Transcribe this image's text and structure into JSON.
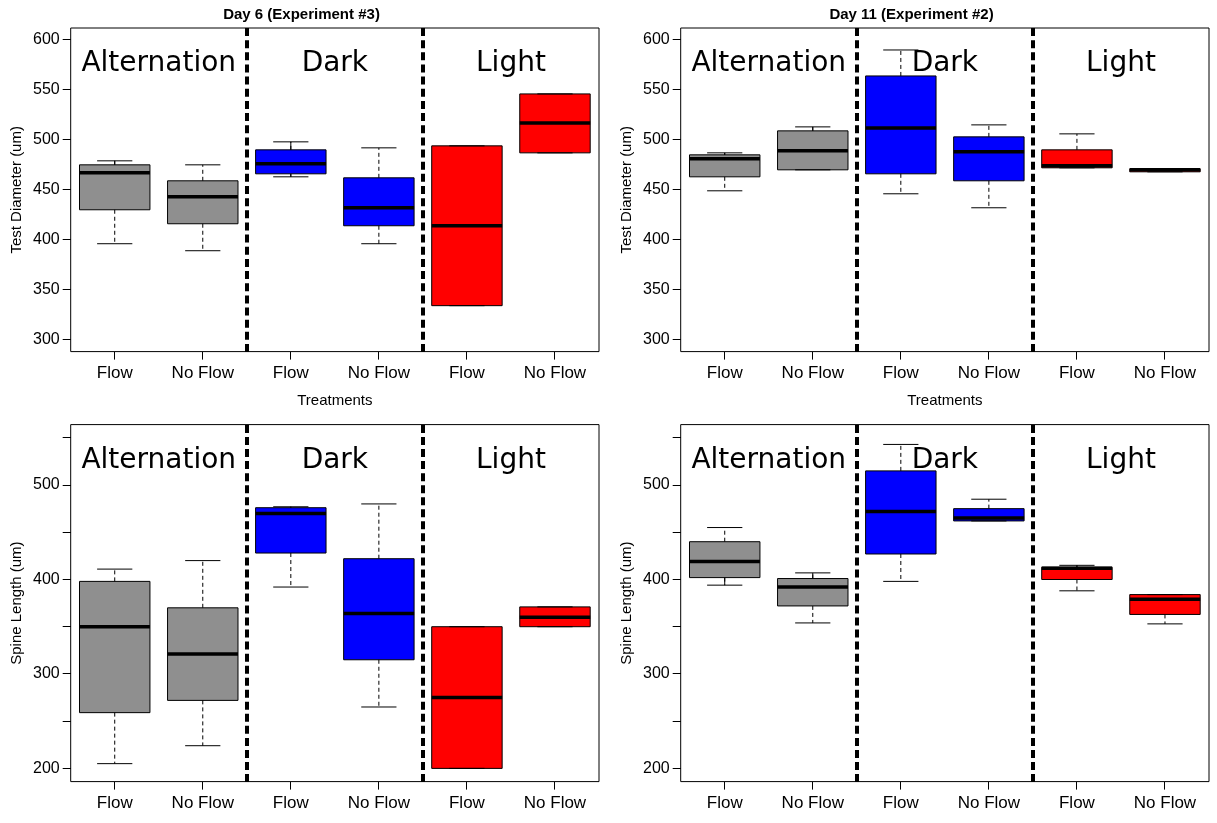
{
  "chart_data": [
    {
      "type": "box",
      "title": "Day 6 (Experiment #3)",
      "xlabel": "Treatments",
      "ylabel": "Test Diameter (um)",
      "categories": [
        "Flow",
        "No Flow",
        "Flow",
        "No Flow",
        "Flow",
        "No Flow"
      ],
      "colors": [
        "#8f8f8f",
        "#8f8f8f",
        "#0000ff",
        "#0000ff",
        "#ff0000",
        "#ff0000"
      ],
      "boxes": [
        {
          "low": 396,
          "q1": 430,
          "median": 467,
          "q3": 475,
          "high": 479
        },
        {
          "low": 389,
          "q1": 416,
          "median": 443,
          "q3": 459,
          "high": 475
        },
        {
          "low": 463,
          "q1": 466,
          "median": 476,
          "q3": 490,
          "high": 498
        },
        {
          "low": 396,
          "q1": 414,
          "median": 432,
          "q3": 462,
          "high": 492
        },
        {
          "low": 334,
          "q1": 334,
          "median": 414,
          "q3": 494,
          "high": 494
        },
        {
          "low": 487,
          "q1": 487,
          "median": 517,
          "q3": 546,
          "high": 546
        }
      ],
      "ylim": [
        288,
        612
      ],
      "yticks": [
        300,
        350,
        400,
        450,
        500,
        550,
        600
      ],
      "annotations": [
        "Alternation",
        "Dark",
        "Light"
      ],
      "grid": false,
      "legend": false
    },
    {
      "type": "box",
      "title": "Day 11 (Experiment #2)",
      "xlabel": "Treatments",
      "ylabel": "Test Diameter (um)",
      "categories": [
        "Flow",
        "No Flow",
        "Flow",
        "No Flow",
        "Flow",
        "No Flow"
      ],
      "colors": [
        "#8f8f8f",
        "#8f8f8f",
        "#0000ff",
        "#0000ff",
        "#ff0000",
        "#ff0000"
      ],
      "boxes": [
        {
          "low": 449,
          "q1": 463,
          "median": 481,
          "q3": 485,
          "high": 487
        },
        {
          "low": 470,
          "q1": 470,
          "median": 489,
          "q3": 509,
          "high": 513
        },
        {
          "low": 446,
          "q1": 466,
          "median": 512,
          "q3": 564,
          "high": 590
        },
        {
          "low": 432,
          "q1": 459,
          "median": 488,
          "q3": 503,
          "high": 515
        },
        {
          "low": 472,
          "q1": 472,
          "median": 474,
          "q3": 490,
          "high": 506
        },
        {
          "low": 468,
          "q1": 468,
          "median": 470,
          "q3": 471,
          "high": 471
        }
      ],
      "ylim": [
        288,
        612
      ],
      "yticks": [
        300,
        350,
        400,
        450,
        500,
        550,
        600
      ],
      "annotations": [
        "Alternation",
        "Dark",
        "Light"
      ],
      "grid": false,
      "legend": false
    },
    {
      "type": "box",
      "ylabel": "Spine Length (um)",
      "categories": [
        "Flow",
        "No Flow",
        "Flow",
        "No Flow",
        "Flow",
        "No Flow"
      ],
      "colors": [
        "#8f8f8f",
        "#8f8f8f",
        "#0000ff",
        "#0000ff",
        "#ff0000",
        "#ff0000"
      ],
      "boxes": [
        {
          "low": 205,
          "q1": 259,
          "median": 350,
          "q3": 398,
          "high": 411
        },
        {
          "low": 224,
          "q1": 272,
          "median": 321,
          "q3": 370,
          "high": 420
        },
        {
          "low": 392,
          "q1": 428,
          "median": 470,
          "q3": 476,
          "high": 477
        },
        {
          "low": 265,
          "q1": 315,
          "median": 364,
          "q3": 422,
          "high": 480
        },
        {
          "low": 200,
          "q1": 200,
          "median": 275,
          "q3": 350,
          "high": 350
        },
        {
          "low": 350,
          "q1": 350,
          "median": 360,
          "q3": 371,
          "high": 371
        }
      ],
      "ylim": [
        186,
        564
      ],
      "yticks": [
        200,
        {
          "value": 250,
          "label": null
        },
        300,
        {
          "value": 350,
          "label": null
        },
        400,
        {
          "value": 450,
          "label": null
        },
        500,
        {
          "value": 550,
          "label": null
        }
      ],
      "annotations": [
        "Alternation",
        "Dark",
        "Light"
      ],
      "grid": false,
      "legend": false
    },
    {
      "type": "box",
      "ylabel": "Spine Length (um)",
      "categories": [
        "Flow",
        "No Flow",
        "Flow",
        "No Flow",
        "Flow",
        "No Flow"
      ],
      "colors": [
        "#8f8f8f",
        "#8f8f8f",
        "#0000ff",
        "#0000ff",
        "#ff0000",
        "#ff0000"
      ],
      "boxes": [
        {
          "low": 394,
          "q1": 402,
          "median": 419,
          "q3": 440,
          "high": 455
        },
        {
          "low": 354,
          "q1": 372,
          "median": 392,
          "q3": 401,
          "high": 407
        },
        {
          "low": 398,
          "q1": 427,
          "median": 472,
          "q3": 515,
          "high": 543
        },
        {
          "low": 462,
          "q1": 462,
          "median": 465,
          "q3": 475,
          "high": 485
        },
        {
          "low": 388,
          "q1": 400,
          "median": 412,
          "q3": 413,
          "high": 415
        },
        {
          "low": 353,
          "q1": 363,
          "median": 379,
          "q3": 384,
          "high": 384
        }
      ],
      "ylim": [
        186,
        564
      ],
      "yticks": [
        200,
        {
          "value": 250,
          "label": null
        },
        300,
        {
          "value": 350,
          "label": null
        },
        400,
        {
          "value": 450,
          "label": null
        },
        500,
        {
          "value": 550,
          "label": null
        }
      ],
      "annotations": [
        "Alternation",
        "Dark",
        "Light"
      ],
      "grid": false,
      "legend": false
    }
  ]
}
